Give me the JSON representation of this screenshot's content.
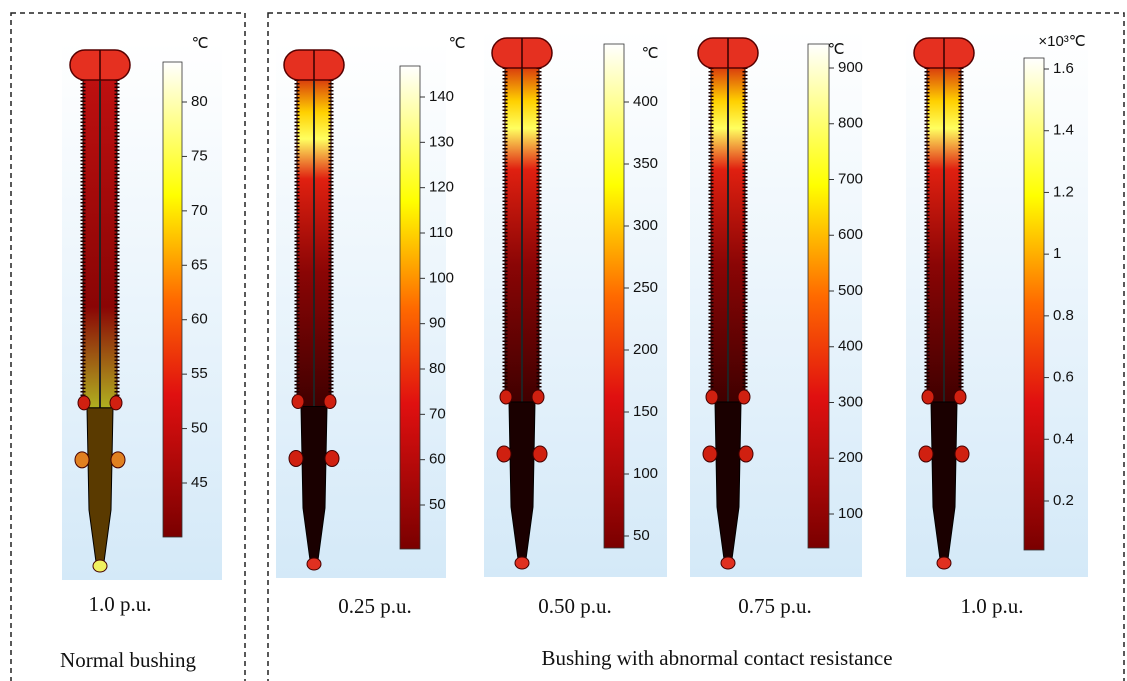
{
  "panels": [
    {
      "colorbar": {
        "unit": "℃",
        "ticks": [
          "80",
          "75",
          "70",
          "65",
          "60",
          "55",
          "50",
          "45"
        ]
      },
      "caption": "1.0 p.u."
    },
    {
      "colorbar": {
        "unit": "℃",
        "ticks": [
          "140",
          "130",
          "120",
          "110",
          "100",
          "90",
          "80",
          "70",
          "60",
          "50"
        ]
      },
      "caption": "0.25 p.u."
    },
    {
      "colorbar": {
        "unit": "℃",
        "ticks": [
          "400",
          "350",
          "300",
          "250",
          "200",
          "150",
          "100",
          "50"
        ]
      },
      "caption": "0.50 p.u."
    },
    {
      "colorbar": {
        "unit": "℃",
        "ticks": [
          "900",
          "800",
          "700",
          "600",
          "500",
          "400",
          "300",
          "200",
          "100"
        ]
      },
      "caption": "0.75 p.u."
    },
    {
      "colorbar": {
        "unit": "×10³℃",
        "ticks": [
          "1.6",
          "1.4",
          "1.2",
          "1",
          "0.8",
          "0.6",
          "0.4",
          "0.2"
        ]
      },
      "caption": "1.0 p.u."
    }
  ],
  "groups": [
    {
      "label": "Normal bushing"
    },
    {
      "label": "Bushing with abnormal contact resistance"
    }
  ]
}
